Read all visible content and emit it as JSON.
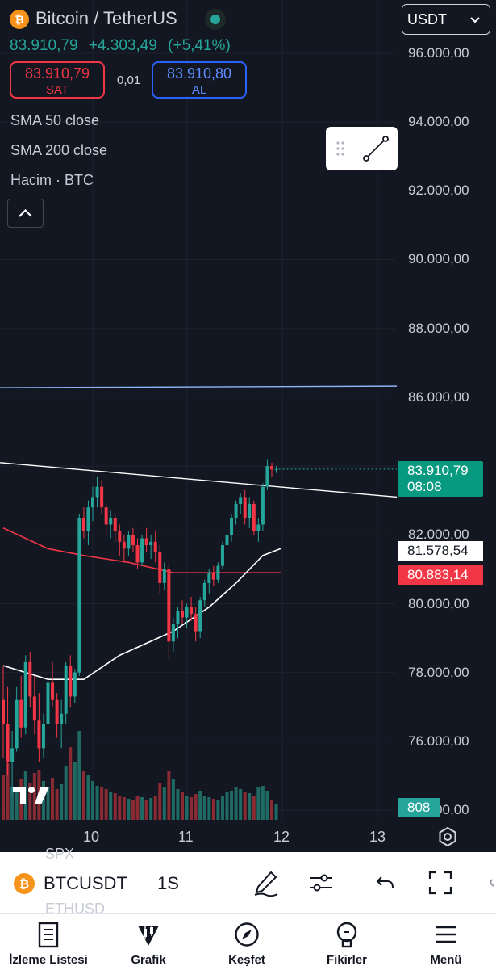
{
  "header": {
    "title": "Bitcoin / TetherUS",
    "price": "83.910,79",
    "change": "+4.303,49",
    "change_pct": "(+5,41%)",
    "coin_icon": "bitcoin-icon",
    "status": "market-open-dot"
  },
  "trade": {
    "sell_price": "83.910,79",
    "sell_label": "SAT",
    "spread": "0,01",
    "buy_price": "83.910,80",
    "buy_label": "AL"
  },
  "currency": {
    "selected": "USDT"
  },
  "indicators": [
    "SMA 50 close",
    "SMA 200 close",
    "Hacim · BTC"
  ],
  "price_axis": [
    "96.000,00",
    "94.000,00",
    "92.000,00",
    "90.000,00",
    "88.000,00",
    "86.000,00",
    "82.000,00",
    "80.000,00",
    "78.000,00",
    "76.000,00",
    "74.000,00"
  ],
  "tags": {
    "last_price": "83.910,79",
    "countdown": "08:08",
    "sma50": "81.578,54",
    "sma200": "80.883,14",
    "volume": "808"
  },
  "time_axis": [
    "10",
    "11",
    "12",
    "13"
  ],
  "colors": {
    "background": "#131722",
    "up": "#26a69a",
    "down": "#f23645",
    "sma50": "#ffffff",
    "sma200": "#f23645",
    "horizontal_line": "#90b4f8",
    "trend_line": "#ffffff"
  },
  "chart_data": {
    "type": "candlestick",
    "ylim": [
      74000,
      96000
    ],
    "x_ticks": [
      "10",
      "11",
      "12",
      "13"
    ],
    "last_price": 83910.79,
    "horizontal_line": 86300,
    "candles": [
      [
        77200,
        78200,
        75500,
        76500
      ],
      [
        76500,
        77600,
        75000,
        75400
      ],
      [
        75400,
        76300,
        74500,
        75800
      ],
      [
        75800,
        77600,
        75700,
        77200
      ],
      [
        77200,
        77900,
        76100,
        76400
      ],
      [
        76400,
        78500,
        76200,
        78300
      ],
      [
        78300,
        78600,
        77000,
        77300
      ],
      [
        77300,
        77900,
        76200,
        76600
      ],
      [
        76600,
        77400,
        75400,
        75800
      ],
      [
        75800,
        76800,
        75500,
        76500
      ],
      [
        76500,
        77800,
        76300,
        77700
      ],
      [
        77700,
        78300,
        77000,
        77200
      ],
      [
        77200,
        77400,
        76100,
        76500
      ],
      [
        76500,
        77200,
        75800,
        76800
      ],
      [
        76800,
        78300,
        76500,
        78200
      ],
      [
        78200,
        78500,
        77000,
        77300
      ],
      [
        77300,
        78100,
        77100,
        78000
      ],
      [
        78000,
        82600,
        77900,
        82500
      ],
      [
        82500,
        82800,
        81900,
        82100
      ],
      [
        82100,
        83000,
        81700,
        82800
      ],
      [
        82800,
        83400,
        82400,
        83100
      ],
      [
        83100,
        83700,
        82800,
        83400
      ],
      [
        83400,
        83600,
        82600,
        82800
      ],
      [
        82800,
        82900,
        82000,
        82300
      ],
      [
        82300,
        82700,
        81900,
        82500
      ],
      [
        82500,
        82600,
        81800,
        82100
      ],
      [
        82100,
        82300,
        81400,
        81800
      ],
      [
        81800,
        82000,
        81200,
        81600
      ],
      [
        81600,
        82100,
        81400,
        82000
      ],
      [
        82000,
        82200,
        81500,
        81700
      ],
      [
        81700,
        81900,
        81000,
        81200
      ],
      [
        81200,
        82000,
        81100,
        81900
      ],
      [
        81900,
        82200,
        81500,
        81700
      ],
      [
        81700,
        82000,
        81300,
        81800
      ],
      [
        81800,
        82100,
        81200,
        81500
      ],
      [
        81500,
        81700,
        80300,
        80600
      ],
      [
        80600,
        81200,
        80400,
        81000
      ],
      [
        81000,
        81200,
        78400,
        78900
      ],
      [
        78900,
        79600,
        78600,
        79400
      ],
      [
        79400,
        79900,
        79000,
        79800
      ],
      [
        79800,
        80100,
        79400,
        79600
      ],
      [
        79600,
        80000,
        79300,
        79900
      ],
      [
        79900,
        80200,
        79500,
        79700
      ],
      [
        79700,
        79900,
        78900,
        79200
      ],
      [
        79200,
        80200,
        79000,
        80100
      ],
      [
        80100,
        80700,
        79900,
        80600
      ],
      [
        80600,
        81000,
        80300,
        80900
      ],
      [
        80900,
        81100,
        80500,
        80700
      ],
      [
        80700,
        81200,
        80600,
        81100
      ],
      [
        81100,
        81800,
        81000,
        81700
      ],
      [
        81700,
        82100,
        81500,
        82000
      ],
      [
        82000,
        82600,
        81800,
        82500
      ],
      [
        82500,
        83000,
        82300,
        82900
      ],
      [
        82900,
        83200,
        82600,
        83100
      ],
      [
        83100,
        83300,
        82300,
        82500
      ],
      [
        82500,
        83100,
        82200,
        82900
      ],
      [
        82900,
        83000,
        82000,
        82100
      ],
      [
        82100,
        82500,
        81800,
        82300
      ],
      [
        82300,
        83500,
        82100,
        83400
      ],
      [
        83400,
        84200,
        83300,
        84000
      ],
      [
        84000,
        84100,
        83700,
        83900
      ],
      [
        83900,
        84000,
        83800,
        83910.79
      ]
    ],
    "volumes": [
      55,
      70,
      40,
      35,
      50,
      60,
      45,
      58,
      62,
      48,
      40,
      52,
      38,
      44,
      66,
      90,
      72,
      110,
      60,
      55,
      48,
      42,
      40,
      38,
      35,
      33,
      30,
      28,
      26,
      24,
      30,
      28,
      25,
      27,
      30,
      45,
      40,
      60,
      50,
      38,
      34,
      30,
      28,
      32,
      36,
      30,
      28,
      26,
      25,
      30,
      34,
      36,
      40,
      38,
      35,
      33,
      30,
      40,
      42,
      36,
      25,
      20
    ],
    "sma50_points": [
      [
        0,
        78200
      ],
      [
        10,
        77800
      ],
      [
        18,
        77800
      ],
      [
        26,
        78500
      ],
      [
        38,
        79200
      ],
      [
        46,
        79900
      ],
      [
        52,
        80600
      ],
      [
        58,
        81400
      ],
      [
        62,
        81600
      ]
    ],
    "sma200_points": [
      [
        0,
        82200
      ],
      [
        10,
        81600
      ],
      [
        18,
        81400
      ],
      [
        28,
        81200
      ],
      [
        38,
        80900
      ],
      [
        48,
        80900
      ],
      [
        56,
        80900
      ],
      [
        62,
        80900
      ]
    ],
    "trend_line": [
      [
        -2,
        84100
      ],
      [
        74,
        83100
      ]
    ]
  }
}
